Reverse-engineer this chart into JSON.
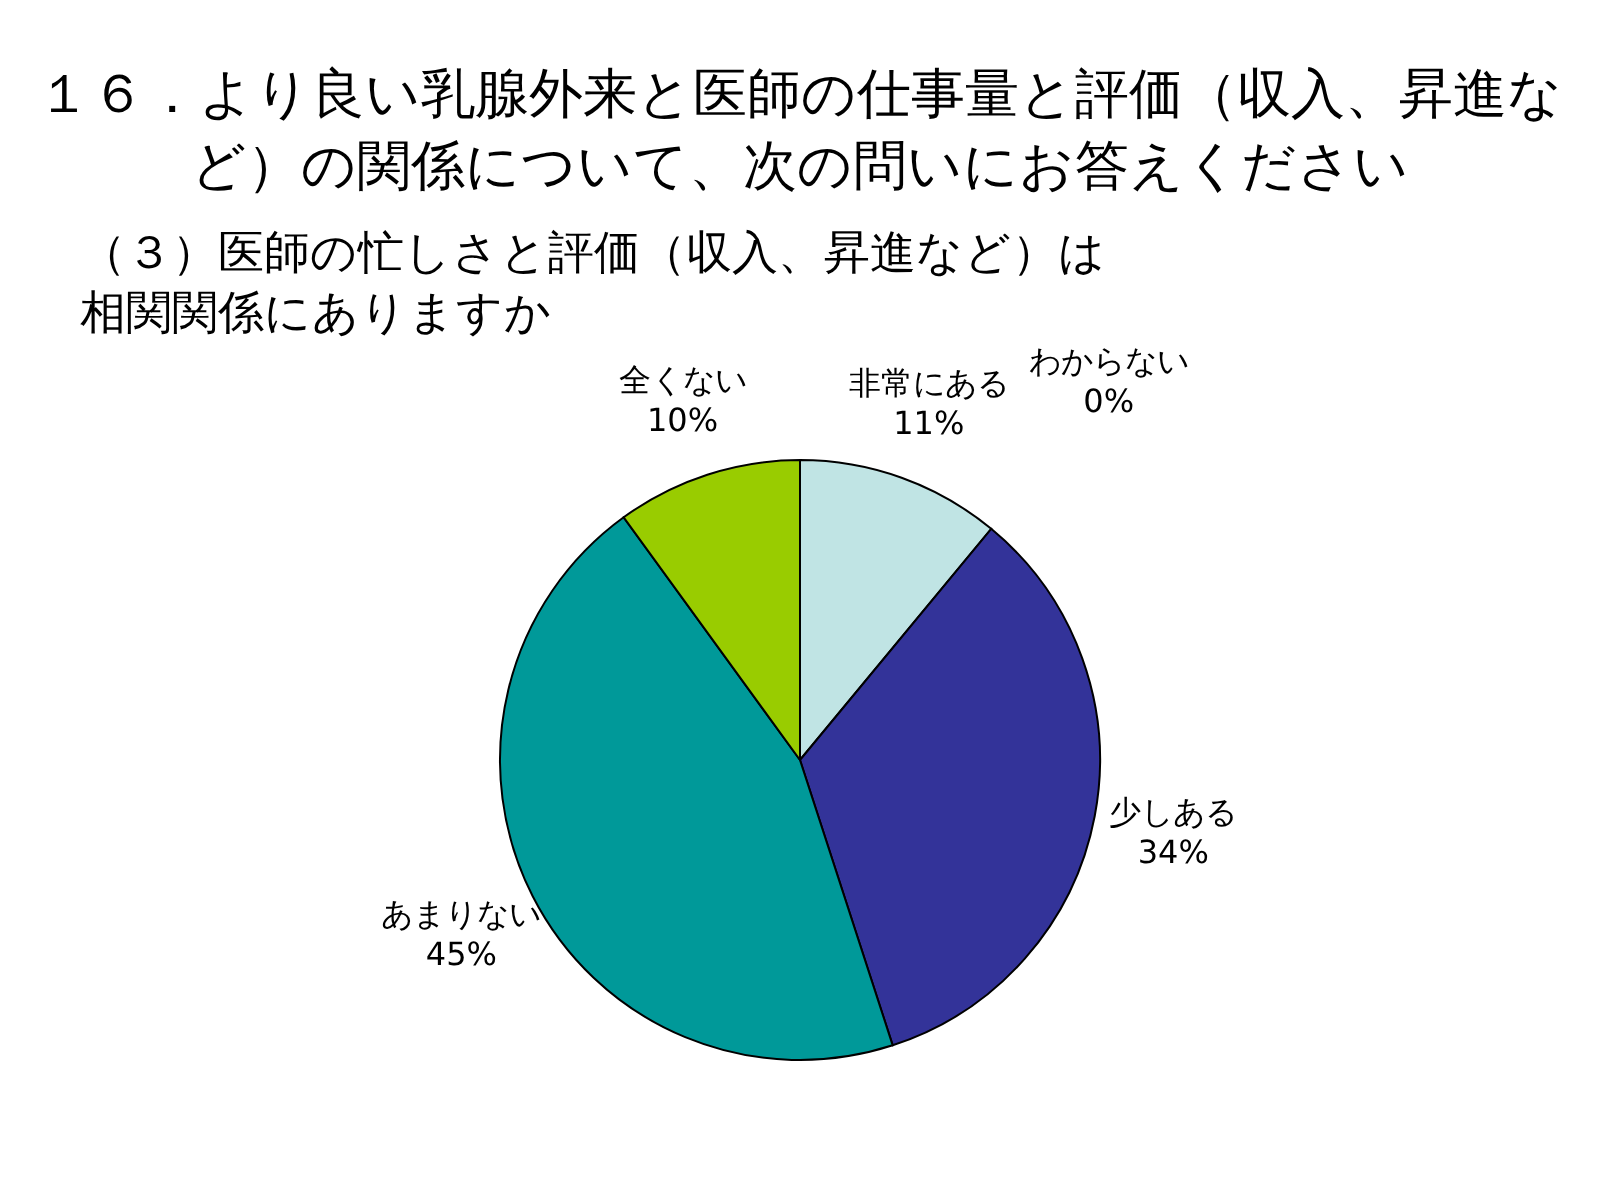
{
  "chart_data": {
    "type": "pie",
    "title": "１６．より良い乳腺外来と医師の仕事量と評価（収入、昇進など）の関係について、次の問いにお答えください",
    "subtitle": "（３）医師の忙しさと評価（収入、昇進など）は相関関係にありますか",
    "categories": [
      "非常にある",
      "少しある",
      "あまりない",
      "全くない",
      "わからない"
    ],
    "values": [
      11,
      34,
      45,
      10,
      0
    ],
    "colors": [
      "#c0e4e4",
      "#333399",
      "#009999",
      "#99cc00",
      "#ffcc99"
    ],
    "value_labels": [
      "11%",
      "34%",
      "45%",
      "10%",
      "0%"
    ],
    "legend": false
  }
}
